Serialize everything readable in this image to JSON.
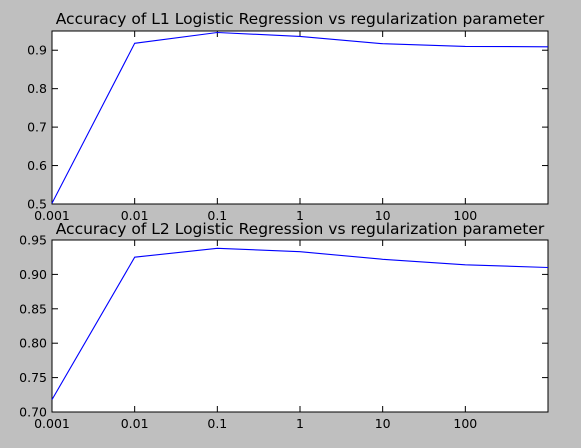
{
  "figure": {
    "background": "#bfbfbf",
    "line_color": "#0000ff"
  },
  "chart_data": [
    {
      "type": "line",
      "title": "Accuracy of L1 Logistic Regression vs regularization parameter",
      "xlabel": "",
      "ylabel": "",
      "x_scale": "log",
      "x": [
        0.001,
        0.01,
        0.1,
        1,
        10,
        100,
        1000
      ],
      "x_ticks": [
        "0.001",
        "0.01",
        "0.1",
        "1",
        "10",
        "100"
      ],
      "xlim": [
        0.001,
        1000
      ],
      "y_ticks": [
        "0.5",
        "0.6",
        "0.7",
        "0.8",
        "0.9"
      ],
      "ylim": [
        0.5,
        0.95
      ],
      "grid": false,
      "series": [
        {
          "values": [
            0.502,
            0.918,
            0.946,
            0.936,
            0.917,
            0.91,
            0.909
          ]
        }
      ]
    },
    {
      "type": "line",
      "title": "Accuracy of L2 Logistic Regression vs regularization parameter",
      "xlabel": "",
      "ylabel": "",
      "x_scale": "log",
      "x": [
        0.001,
        0.01,
        0.1,
        1,
        10,
        100,
        1000
      ],
      "x_ticks": [
        "0.001",
        "0.01",
        "0.1",
        "1",
        "10",
        "100"
      ],
      "xlim": [
        0.001,
        1000
      ],
      "y_ticks": [
        "0.70",
        "0.75",
        "0.80",
        "0.85",
        "0.90",
        "0.95"
      ],
      "ylim": [
        0.7,
        0.95
      ],
      "grid": false,
      "series": [
        {
          "values": [
            0.718,
            0.925,
            0.938,
            0.933,
            0.922,
            0.914,
            0.91
          ]
        }
      ]
    }
  ]
}
